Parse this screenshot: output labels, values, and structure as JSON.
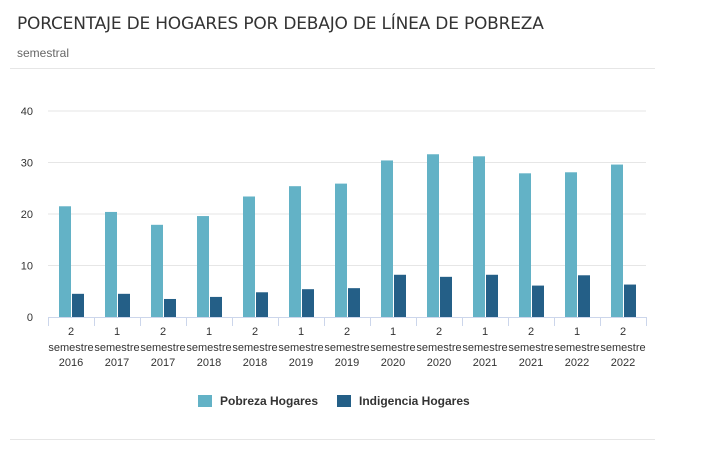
{
  "chart_data": {
    "type": "bar",
    "title": "PORCENTAJE DE HOGARES POR DEBAJO DE LÍNEA DE POBREZA",
    "subtitle": "semestral",
    "categories": [
      [
        "2",
        "semestre",
        "2016"
      ],
      [
        "1",
        "semestre",
        "2017"
      ],
      [
        "2",
        "semestre",
        "2017"
      ],
      [
        "1",
        "semestre",
        "2018"
      ],
      [
        "2",
        "semestre",
        "2018"
      ],
      [
        "1",
        "semestre",
        "2019"
      ],
      [
        "2",
        "semestre",
        "2019"
      ],
      [
        "1",
        "semestre",
        "2020"
      ],
      [
        "2",
        "semestre",
        "2020"
      ],
      [
        "1",
        "semestre",
        "2021"
      ],
      [
        "2",
        "semestre",
        "2021"
      ],
      [
        "1",
        "semestre",
        "2022"
      ],
      [
        "2",
        "semestre",
        "2022"
      ]
    ],
    "series": [
      {
        "name": "Pobreza Hogares",
        "color": "#63b2c6",
        "values": [
          21.5,
          20.4,
          17.9,
          19.6,
          23.4,
          25.4,
          25.9,
          30.4,
          31.6,
          31.2,
          27.9,
          28.1,
          29.6
        ]
      },
      {
        "name": "Indigencia Hogares",
        "color": "#245f87",
        "values": [
          4.5,
          4.5,
          3.5,
          3.9,
          4.8,
          5.4,
          5.6,
          8.2,
          7.8,
          8.2,
          6.1,
          8.1,
          6.3
        ]
      }
    ],
    "ylim": [
      0,
      40
    ],
    "yticks": [
      0,
      10,
      20,
      30,
      40
    ],
    "grid": true,
    "legend": "bottom-center"
  }
}
